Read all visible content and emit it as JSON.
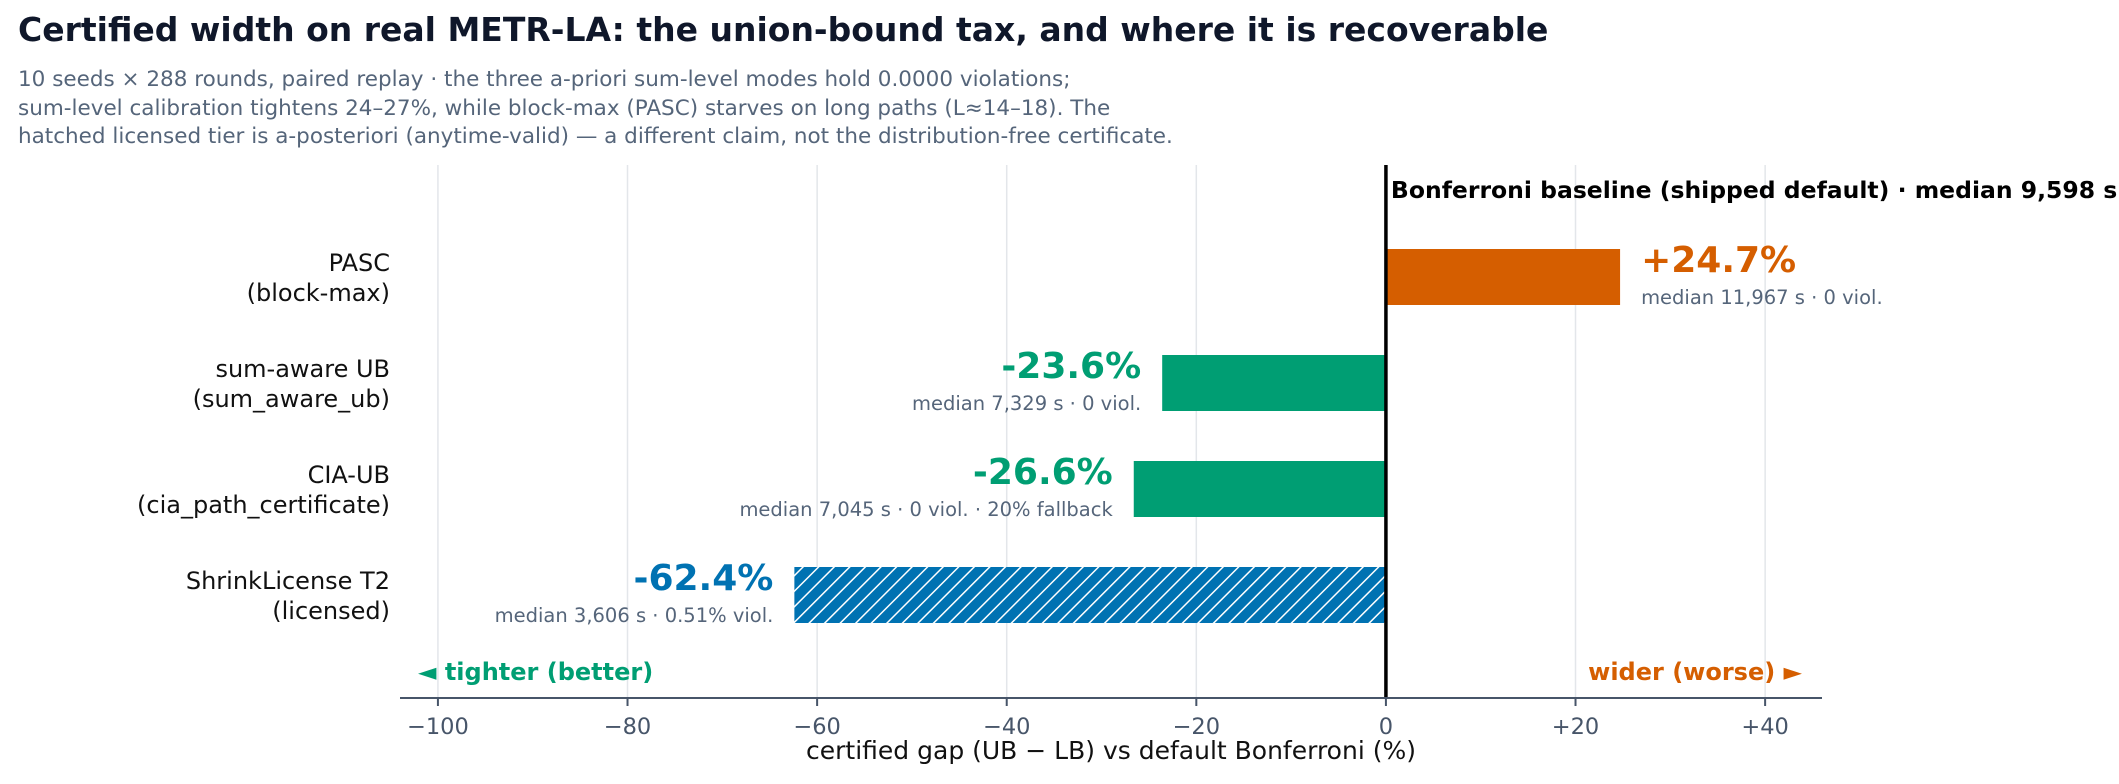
{
  "title": "Certified width on real METR-LA: the union-bound tax, and where it is recoverable",
  "subtitle_lines": [
    "10 seeds × 288 rounds, paired replay · the three a-priori sum-level modes hold 0.0000 violations;",
    "sum-level calibration tightens 24–27%, while block-max (PASC) starves on long paths (L≈14–18). The",
    "hatched licensed tier is a-posteriori (anytime-valid) — a different claim, not the distribution-free certificate."
  ],
  "chart_data": {
    "type": "bar",
    "orientation": "horizontal",
    "title": "Certified width on real METR-LA: the union-bound tax, and where it is recoverable",
    "xlabel": "certified gap (UB − LB) vs default Bonferroni   (%)",
    "ylabel": "",
    "xlim": [
      -104,
      46
    ],
    "xticks": [
      -100,
      -80,
      -60,
      -40,
      -20,
      0,
      20,
      40
    ],
    "xtick_labels": [
      "−100",
      "−80",
      "−60",
      "−40",
      "−20",
      "0",
      "+20",
      "+40"
    ],
    "grid": "vertical",
    "categories": [
      [
        "PASC",
        "(block-max)"
      ],
      [
        "sum-aware UB",
        "(sum_aware_ub)"
      ],
      [
        "CIA-UB",
        "(cia_path_certificate)"
      ],
      [
        "ShrinkLicense T2",
        "(licensed)"
      ]
    ],
    "values": [
      24.7,
      -23.6,
      -26.6,
      -62.4
    ],
    "value_labels": [
      "+24.7%",
      "-23.6%",
      "-26.6%",
      "-62.4%"
    ],
    "detail_labels": [
      "median 11,967 s · 0 viol.",
      "median 7,329 s · 0 viol.",
      "median 7,045 s · 0 viol. · 20% fallback",
      "median 3,606 s · 0.51% viol."
    ],
    "colors": [
      "#d55e00",
      "#009e73",
      "#009e73",
      "#0072b2"
    ],
    "hatched": [
      false,
      false,
      false,
      true
    ],
    "baseline": {
      "value": 0,
      "label": "Bonferroni baseline (shipped default) · median 9,598 s"
    },
    "annotations": {
      "left": {
        "text": "◄ tighter (better)",
        "color": "#009e73"
      },
      "right": {
        "text": "wider (worse) ►",
        "color": "#d55e00"
      }
    }
  }
}
